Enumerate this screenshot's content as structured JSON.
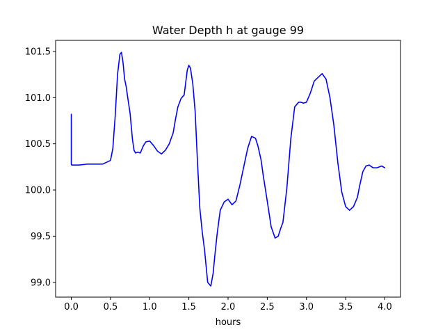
{
  "chart_data": {
    "type": "line",
    "title": "Water Depth h at gauge 99",
    "xlabel": "hours",
    "ylabel": "",
    "xlim": [
      -0.2,
      4.2
    ],
    "ylim": [
      98.84,
      101.62
    ],
    "xticks": [
      0.0,
      0.5,
      1.0,
      1.5,
      2.0,
      2.5,
      3.0,
      3.5,
      4.0
    ],
    "xtick_labels": [
      "0.0",
      "0.5",
      "1.0",
      "1.5",
      "2.0",
      "2.5",
      "3.0",
      "3.5",
      "4.0"
    ],
    "yticks": [
      99.0,
      99.5,
      100.0,
      100.5,
      101.0,
      101.5
    ],
    "ytick_labels": [
      "99.0",
      "99.5",
      "100.0",
      "100.5",
      "101.0",
      "101.5"
    ],
    "grid": false,
    "series": [
      {
        "color": "#0000ff",
        "x": [
          0.0,
          0.0,
          0.005,
          0.1,
          0.2,
          0.3,
          0.4,
          0.45,
          0.5,
          0.53,
          0.56,
          0.59,
          0.62,
          0.64,
          0.66,
          0.68,
          0.7,
          0.72,
          0.75,
          0.78,
          0.8,
          0.82,
          0.85,
          0.88,
          0.92,
          0.95,
          1.0,
          1.05,
          1.1,
          1.15,
          1.2,
          1.25,
          1.3,
          1.33,
          1.36,
          1.4,
          1.44,
          1.48,
          1.5,
          1.52,
          1.55,
          1.58,
          1.61,
          1.64,
          1.67,
          1.7,
          1.74,
          1.78,
          1.81,
          1.83,
          1.86,
          1.9,
          1.95,
          2.0,
          2.05,
          2.1,
          2.15,
          2.2,
          2.25,
          2.3,
          2.35,
          2.38,
          2.42,
          2.45,
          2.5,
          2.55,
          2.6,
          2.64,
          2.67,
          2.7,
          2.75,
          2.8,
          2.85,
          2.9,
          2.93,
          2.96,
          3.0,
          3.05,
          3.1,
          3.15,
          3.2,
          3.25,
          3.3,
          3.35,
          3.4,
          3.45,
          3.5,
          3.55,
          3.6,
          3.65,
          3.68,
          3.72,
          3.76,
          3.8,
          3.85,
          3.9,
          3.93,
          3.96,
          4.0
        ],
        "y": [
          100.82,
          100.28,
          100.27,
          100.27,
          100.28,
          100.28,
          100.28,
          100.3,
          100.32,
          100.45,
          100.8,
          101.25,
          101.47,
          101.49,
          101.38,
          101.2,
          101.12,
          101.0,
          100.83,
          100.55,
          100.43,
          100.4,
          100.41,
          100.4,
          100.48,
          100.52,
          100.53,
          100.48,
          100.42,
          100.39,
          100.43,
          100.5,
          100.62,
          100.77,
          100.9,
          100.99,
          101.03,
          101.3,
          101.35,
          101.32,
          101.15,
          100.85,
          100.3,
          99.8,
          99.55,
          99.35,
          99.0,
          98.96,
          99.1,
          99.28,
          99.52,
          99.78,
          99.87,
          99.9,
          99.84,
          99.88,
          100.05,
          100.25,
          100.45,
          100.58,
          100.56,
          100.48,
          100.33,
          100.15,
          99.88,
          99.6,
          99.48,
          99.5,
          99.58,
          99.65,
          100.02,
          100.55,
          100.9,
          100.95,
          100.95,
          100.94,
          100.95,
          101.05,
          101.18,
          101.22,
          101.26,
          101.2,
          101.0,
          100.7,
          100.3,
          99.98,
          99.82,
          99.78,
          99.82,
          99.92,
          100.05,
          100.2,
          100.26,
          100.27,
          100.24,
          100.24,
          100.25,
          100.26,
          100.24
        ]
      }
    ]
  }
}
